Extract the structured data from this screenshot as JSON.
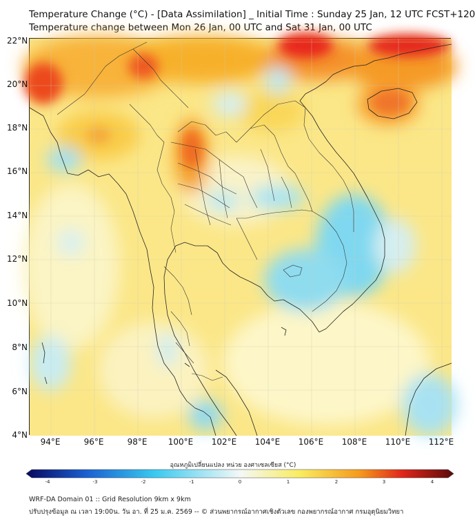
{
  "title": {
    "line1": "Temperature Change (°C) - [Data Assimilation] _ Initial Time : Sunday 25 Jan, 12 UTC FCST+120",
    "line2": "Temperature change between Mon 26 Jan, 00 UTC and Sat 31 Jan, 00 UTC"
  },
  "axes": {
    "y_labels": [
      "22°N",
      "20°N",
      "18°N",
      "16°N",
      "14°N",
      "12°N",
      "10°N",
      "8°N",
      "6°N",
      "4°N"
    ],
    "x_labels": [
      "94°E",
      "96°E",
      "98°E",
      "100°E",
      "102°E",
      "104°E",
      "106°E",
      "108°E",
      "110°E",
      "112°E"
    ]
  },
  "colorbar": {
    "title": "อุณหภูมิเปลี่ยนแปลง หน่วย องศาเซลเซียส (°C)",
    "ticks": [
      "-4",
      "-3",
      "-2",
      "-1",
      "0",
      "1",
      "2",
      "3",
      "4"
    ],
    "colors": {
      "min": "#08085e",
      "cold": "#1a5fd0",
      "cyan": "#39c9f0",
      "neutral": "#f4f8f6",
      "warm": "#f9ec60",
      "orange": "#f59a1c",
      "hot": "#e0261a",
      "max": "#5a0a0a"
    }
  },
  "footer": {
    "line1": "WRF-DA Domain 01 :: Grid Resolution 9km x 9km",
    "line2": "ปรับปรุงข้อมูล ณ เวลา 19:00น. วัน อา. ที่ 25 ม.ค. 2569 -- © ส่วนพยากรณ์อากาศเชิงตัวเลข กองพยากรณ์อากาศ กรมอุตุนิยมวิทยา"
  }
}
